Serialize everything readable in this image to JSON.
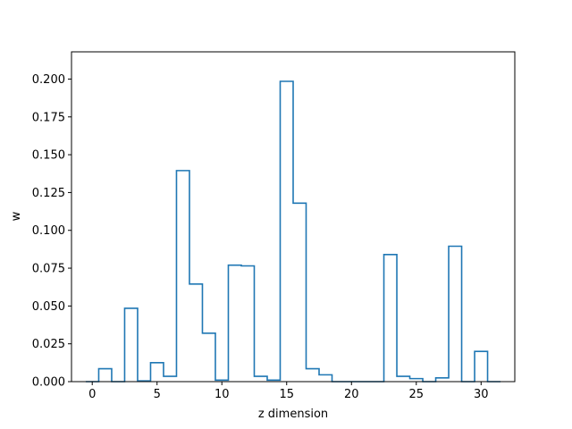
{
  "chart_data": {
    "type": "step",
    "title": "",
    "xlabel": "z dimension",
    "ylabel": "w",
    "xlim": [
      -1.6,
      32.6
    ],
    "ylim": [
      0,
      0.218
    ],
    "xticks": [
      0,
      5,
      10,
      15,
      20,
      25,
      30
    ],
    "yticks": [
      0.0,
      0.025,
      0.05,
      0.075,
      0.1,
      0.125,
      0.15,
      0.175,
      0.2
    ],
    "ytick_labels": [
      "0.000",
      "0.025",
      "0.050",
      "0.075",
      "0.100",
      "0.125",
      "0.150",
      "0.175",
      "0.200"
    ],
    "xtick_labels": [
      "0",
      "5",
      "10",
      "15",
      "20",
      "25",
      "30"
    ],
    "grid": false,
    "line_color": "#1f77b4",
    "series": [
      {
        "x": [
          0,
          1,
          2,
          3,
          4,
          5,
          6,
          7,
          8,
          9,
          10,
          11,
          12,
          13,
          14,
          15,
          16,
          17,
          18,
          19,
          20,
          21,
          22,
          23,
          24,
          25,
          26,
          27,
          28,
          29,
          30,
          31
        ],
        "values": [
          0.0,
          0.0085,
          0.0,
          0.0485,
          0.0005,
          0.0125,
          0.0035,
          0.1395,
          0.0645,
          0.032,
          0.001,
          0.077,
          0.0765,
          0.0035,
          0.001,
          0.1985,
          0.118,
          0.0085,
          0.0045,
          0.0,
          0.0,
          0.0,
          0.0,
          0.084,
          0.0035,
          0.002,
          0.0,
          0.0025,
          0.0895,
          0.0,
          0.02,
          0.0
        ]
      }
    ]
  }
}
